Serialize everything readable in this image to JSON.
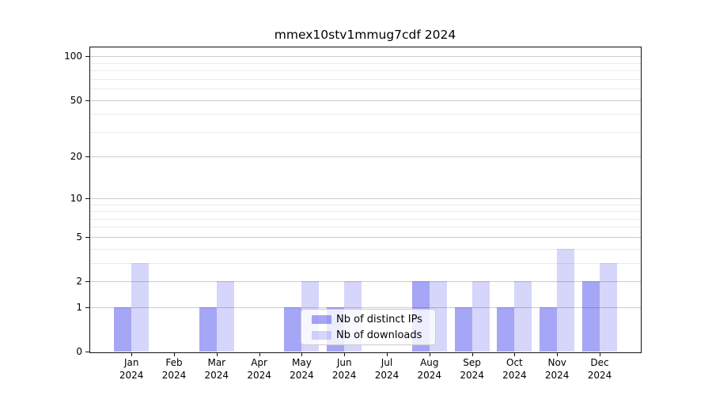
{
  "title": "mmex10stv1mmug7cdf 2024",
  "chart_data": {
    "type": "bar",
    "title": "mmex10stv1mmug7cdf 2024",
    "categories": [
      "Jan",
      "Feb",
      "Mar",
      "Apr",
      "May",
      "Jun",
      "Jul",
      "Aug",
      "Sep",
      "Oct",
      "Nov",
      "Dec"
    ],
    "year_label": "2024",
    "series": [
      {
        "name": "Nb of distinct IPs",
        "color": "#0000e6",
        "alpha": 0.35,
        "values": [
          1,
          0,
          1,
          0,
          1,
          1,
          0,
          2,
          1,
          1,
          1,
          2
        ]
      },
      {
        "name": "Nb of downloads",
        "color": "#0000e6",
        "alpha": 0.16,
        "values": [
          3,
          0,
          2,
          0,
          2,
          2,
          0,
          2,
          2,
          2,
          4,
          3
        ]
      }
    ],
    "xlabel": "",
    "ylabel": "",
    "yscale": "log1p",
    "ylim": [
      0,
      117
    ],
    "yticks": [
      0,
      1,
      2,
      5,
      10,
      20,
      50,
      100
    ],
    "yticks_minor": [
      3,
      4,
      6,
      7,
      8,
      9,
      30,
      40,
      60,
      70,
      80,
      90
    ],
    "grid": true,
    "legend_position": "inside-bottom-center",
    "colors": {
      "bar_distinct_ips_effective": "#a6a6f6",
      "bar_downloads_effective": "#d6d6fb",
      "grid_major": "#cccccc",
      "grid_minor": "#ebebeb",
      "axis": "#111111",
      "background": "#ffffff",
      "text": "#000000"
    }
  }
}
